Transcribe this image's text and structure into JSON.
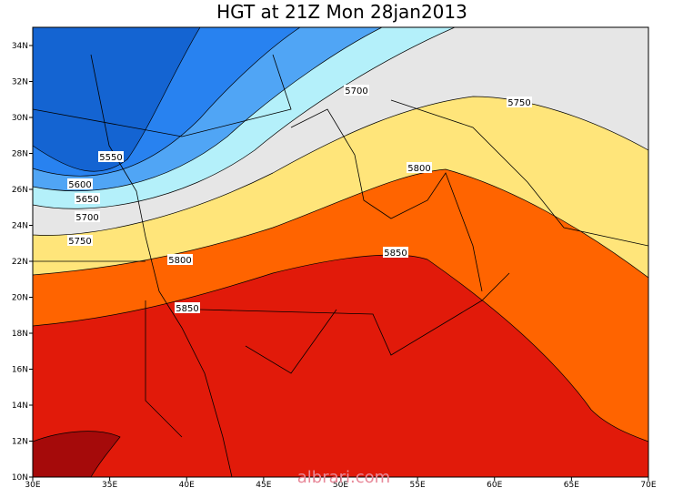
{
  "title": "HGT at 21Z Mon 28jan2013",
  "lat_labels": [
    "34N",
    "32N",
    "30N",
    "28N",
    "26N",
    "24N",
    "22N",
    "20N",
    "18N",
    "16N",
    "14N",
    "12N",
    "10N"
  ],
  "lon_labels": [
    "30E",
    "35E",
    "40E",
    "45E",
    "50E",
    "55E",
    "60E",
    "65E",
    "70E"
  ],
  "contour_labels": [
    5550,
    5600,
    5650,
    5700,
    5750,
    5800,
    5850,
    5700,
    5750,
    5800,
    5850
  ],
  "watermark": "albrari.com"
}
